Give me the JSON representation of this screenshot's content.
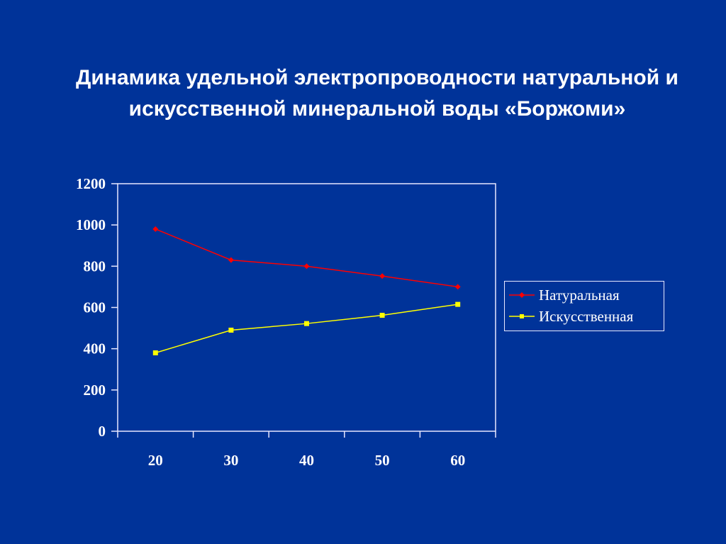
{
  "title": {
    "line1": "Динамика удельной электропроводности натуральной и",
    "line2": "искусственной минеральной воды «Боржоми»"
  },
  "colors": {
    "background": "#003399",
    "axis": "#e8e8ff",
    "natural": "#ff0000",
    "artificial": "#ffff00"
  },
  "legend": {
    "items": [
      {
        "label": "Натуральная",
        "marker": "diamond",
        "color": "#ff0000"
      },
      {
        "label": "Искусственная",
        "marker": "square",
        "color": "#ffff00"
      }
    ]
  },
  "chart_data": {
    "type": "line",
    "title": "Динамика удельной электропроводности натуральной и искусственной минеральной воды «Боржоми»",
    "xlabel": "",
    "ylabel": "",
    "categories": [
      "20",
      "30",
      "40",
      "50",
      "60"
    ],
    "series": [
      {
        "name": "Натуральная",
        "color": "#ff0000",
        "marker": "diamond",
        "values": [
          980,
          830,
          800,
          752,
          700
        ]
      },
      {
        "name": "Искусственная",
        "color": "#ffff00",
        "marker": "square",
        "values": [
          380,
          490,
          522,
          562,
          615
        ]
      }
    ],
    "ylim": [
      0,
      1200
    ],
    "yticks": [
      "0",
      "200",
      "400",
      "600",
      "800",
      "1000",
      "1200"
    ],
    "grid": false,
    "legend_position": "right"
  }
}
